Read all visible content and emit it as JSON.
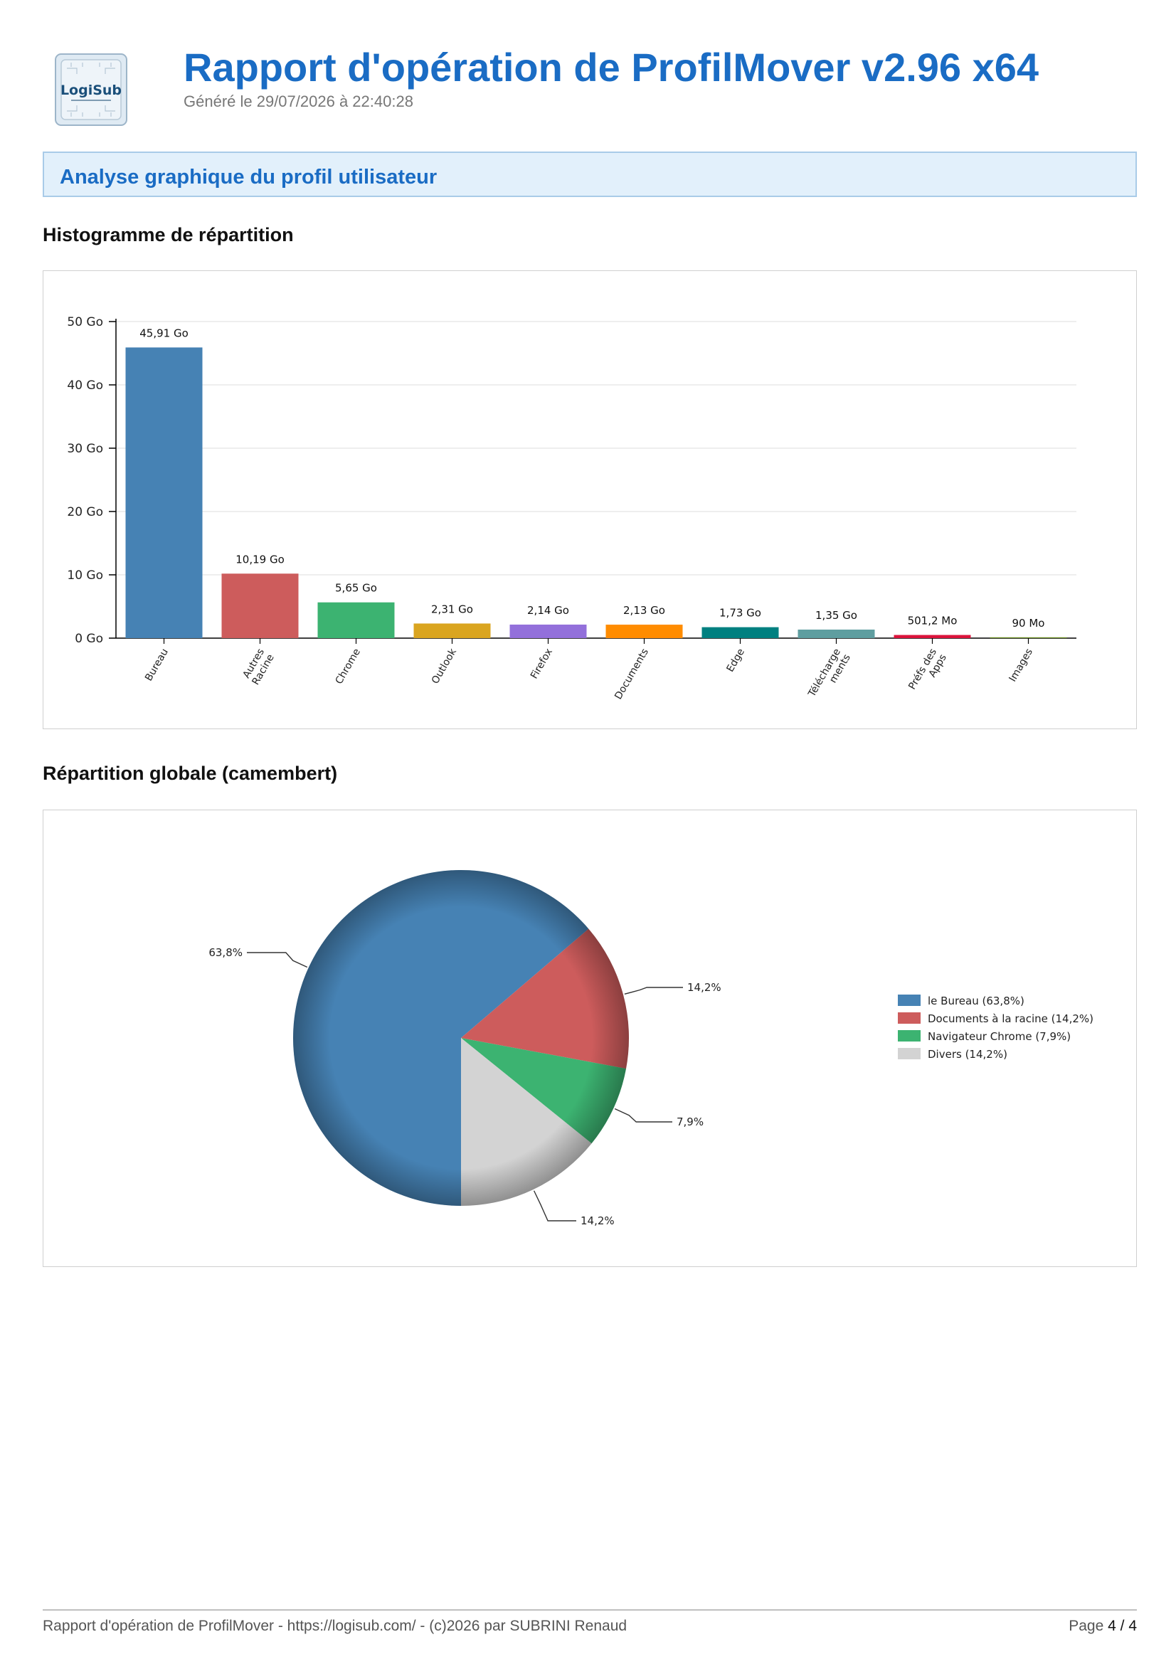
{
  "header": {
    "logo_text": "LogiSub",
    "title": "Rapport d'opération de ProfilMover v2.96 x64",
    "generated": "Généré le 29/07/2026 à 22:40:28"
  },
  "section": {
    "title": "Analyse graphique du profil utilisateur"
  },
  "bar_heading": "Histogramme de répartition",
  "pie_heading": "Répartition globale (camembert)",
  "footer": {
    "left": "Rapport d'opération de ProfilMover - https://logisub.com/ - (c)2026 par SUBRINI Renaud",
    "page_label": "Page",
    "page_current": "4",
    "page_sep": "/",
    "page_total": "4"
  },
  "chart_data": [
    {
      "type": "bar",
      "ylim": [
        0,
        50
      ],
      "yticks": [
        0,
        10,
        20,
        30,
        40,
        50
      ],
      "ytick_labels": [
        "0 Go",
        "10 Go",
        "20 Go",
        "30 Go",
        "40 Go",
        "50 Go"
      ],
      "grid": true,
      "categories": [
        "Bureau",
        "Autres Racine",
        "Chrome",
        "Outlook",
        "Firefox",
        "Documents",
        "Edge",
        "Télécharge ments",
        "Préfs des Apps",
        "Images"
      ],
      "category_lines": [
        [
          "Bureau"
        ],
        [
          "Autres",
          "Racine"
        ],
        [
          "Chrome"
        ],
        [
          "Outlook"
        ],
        [
          "Firefox"
        ],
        [
          "Documents"
        ],
        [
          "Edge"
        ],
        [
          "Télécharge",
          "ments"
        ],
        [
          "Préfs des",
          "Apps"
        ],
        [
          "Images"
        ]
      ],
      "values": [
        45.91,
        10.19,
        5.65,
        2.31,
        2.14,
        2.13,
        1.73,
        1.35,
        0.5012,
        0.09
      ],
      "labels": [
        "45,91 Go",
        "10,19 Go",
        "5,65 Go",
        "2,31 Go",
        "2,14 Go",
        "2,13 Go",
        "1,73 Go",
        "1,35 Go",
        "501,2 Mo",
        "90 Mo"
      ],
      "colors": [
        "#4682b4",
        "#cd5c5c",
        "#3cb371",
        "#daa520",
        "#9370db",
        "#ff8c00",
        "#008080",
        "#5f9ea0",
        "#dc143c",
        "#6b8e23"
      ]
    },
    {
      "type": "pie",
      "slices": [
        {
          "label": "le Bureau (63,8%)",
          "value": 63.8,
          "pct_label": "63,8%",
          "color": "#4682b4"
        },
        {
          "label": "Documents à la racine (14,2%)",
          "value": 14.2,
          "pct_label": "14,2%",
          "color": "#cd5c5c"
        },
        {
          "label": "Navigateur Chrome (7,9%)",
          "value": 7.9,
          "pct_label": "7,9%",
          "color": "#3cb371"
        },
        {
          "label": "Divers (14,2%)",
          "value": 14.2,
          "pct_label": "14,2%",
          "color": "#d3d3d3"
        }
      ],
      "legend": "right"
    }
  ]
}
